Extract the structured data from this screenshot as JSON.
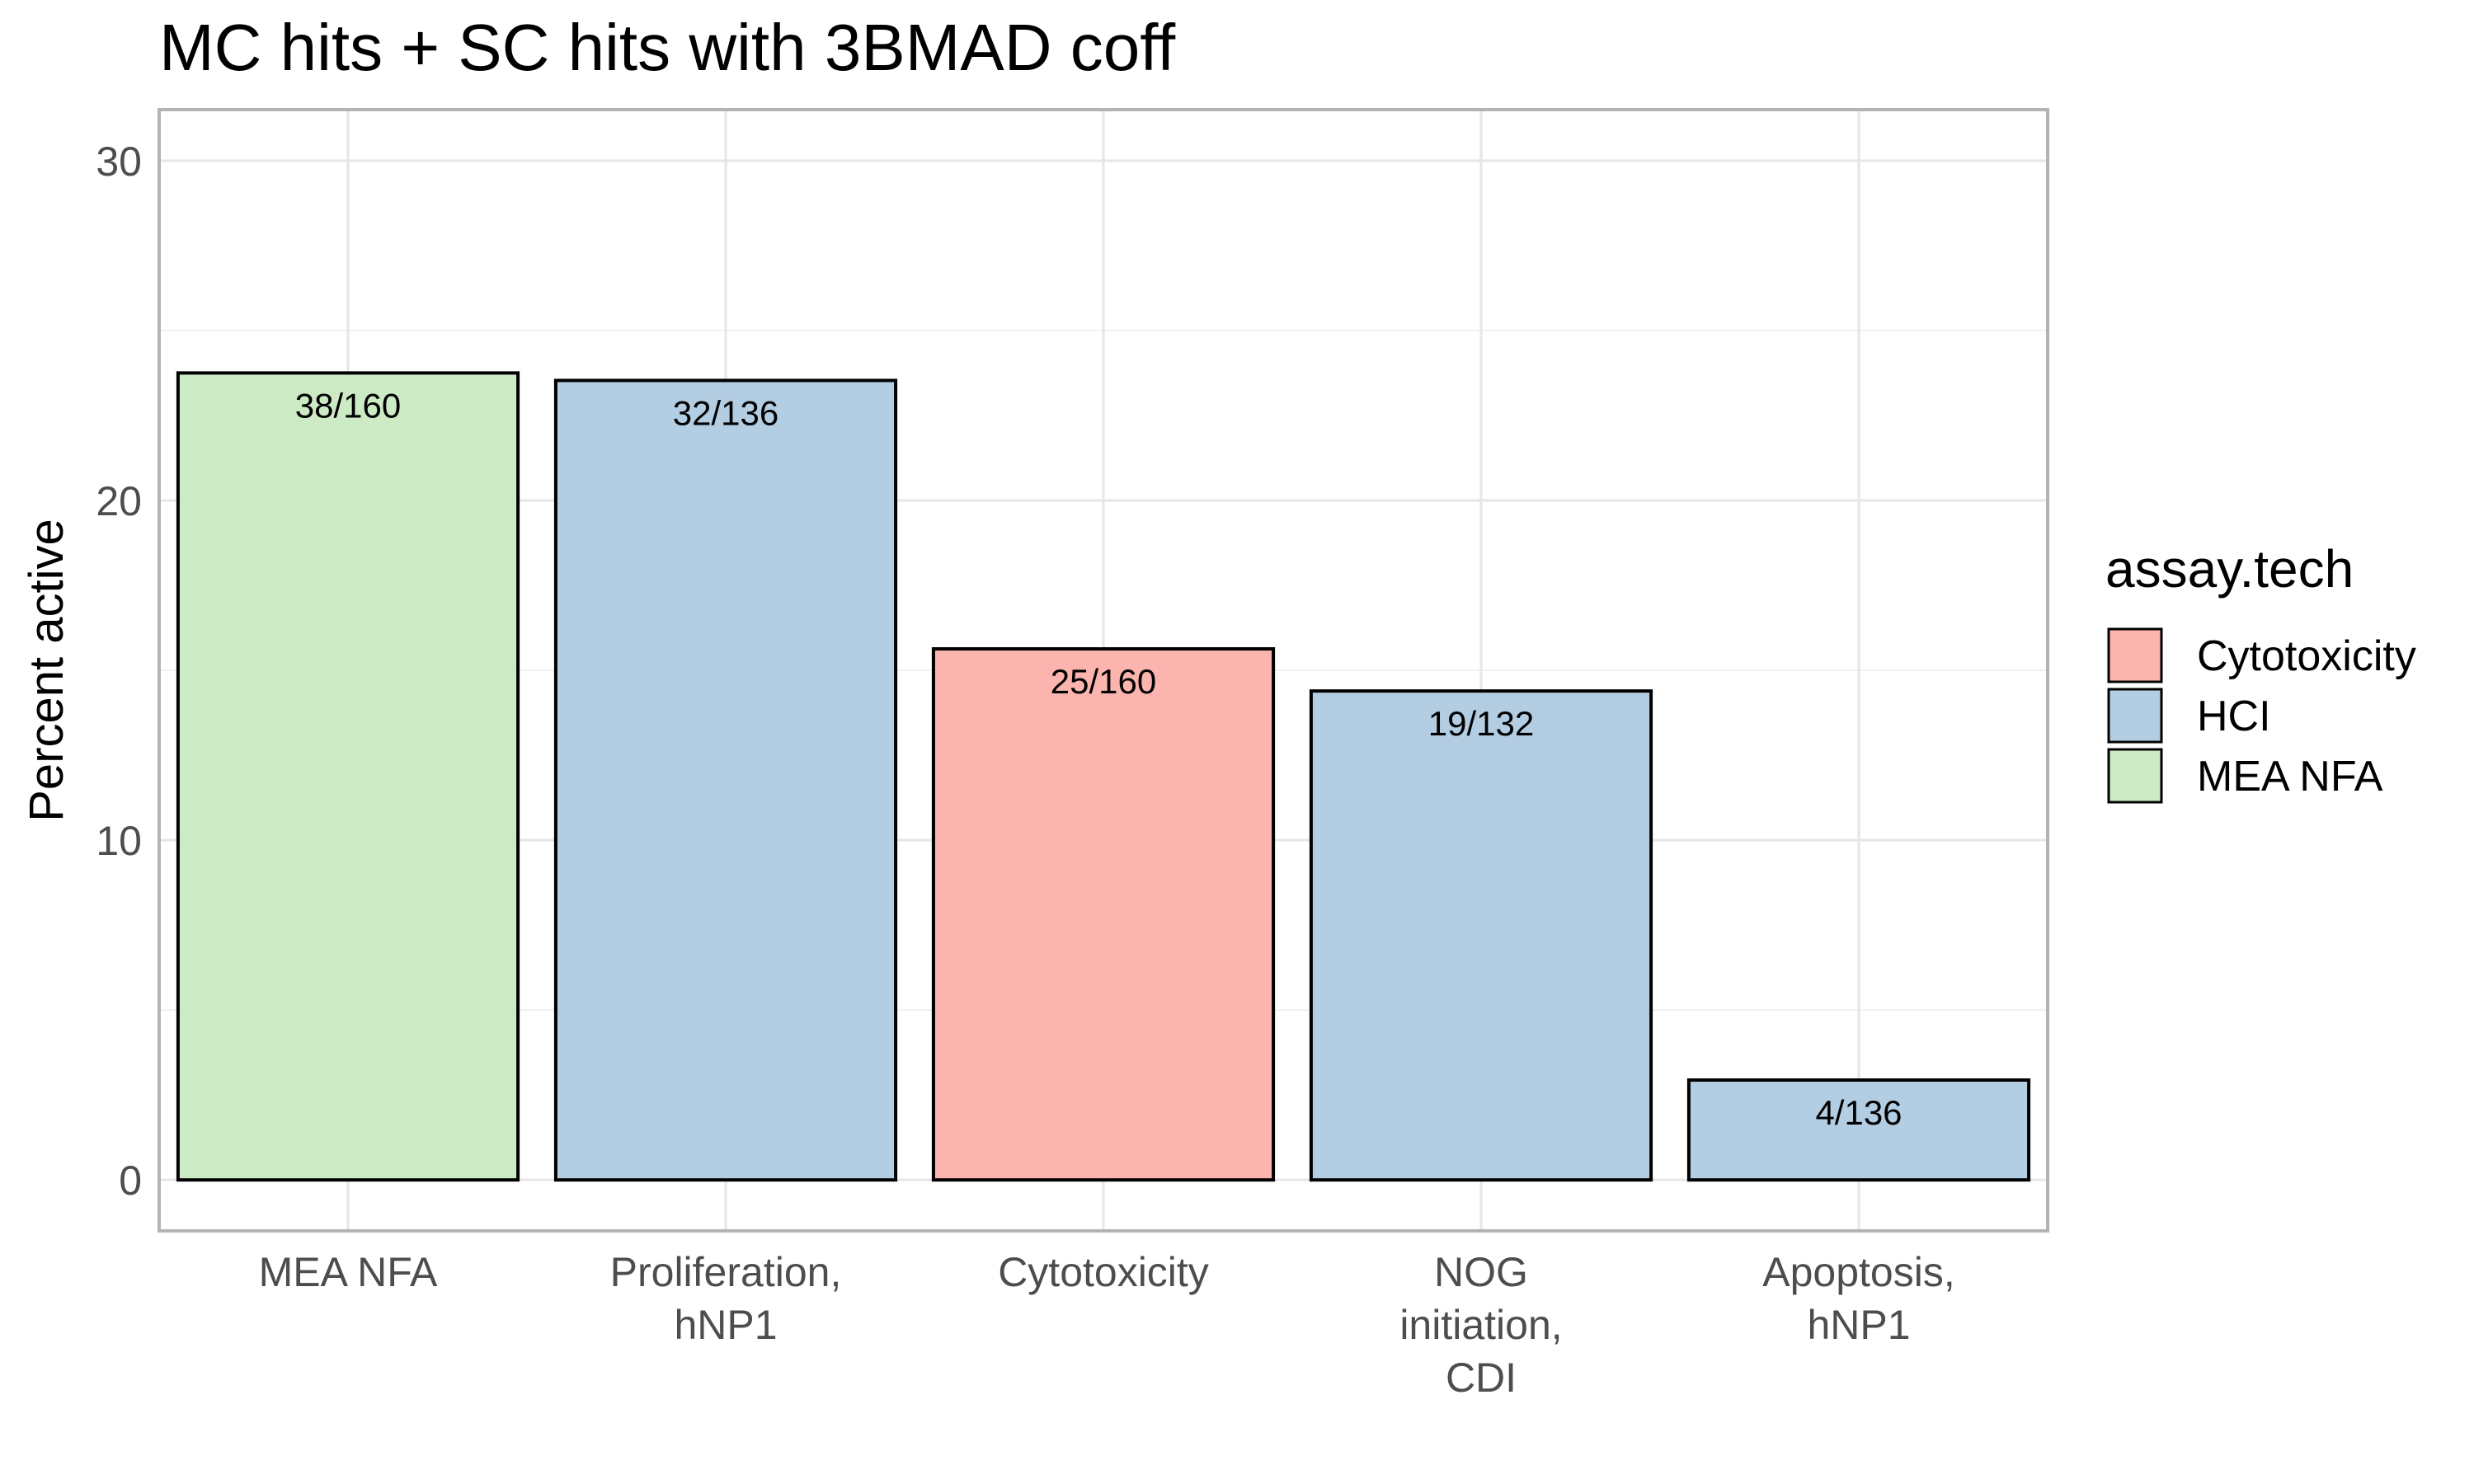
{
  "chart_data": {
    "type": "bar",
    "title": "MC hits + SC hits with 3BMAD coff",
    "xlabel": "",
    "ylabel": "Percent active",
    "ylim": [
      -1.5,
      31.5
    ],
    "y_ticks": [
      "0",
      "10",
      "20",
      "30"
    ],
    "grid": true,
    "legend_position": "right",
    "categories": [
      [
        "MEA NFA"
      ],
      [
        "Proliferation,",
        "hNP1"
      ],
      [
        "Cytotoxicity"
      ],
      [
        "NOG",
        "initiation,",
        "CDI"
      ],
      [
        "Apoptosis,",
        "hNP1"
      ]
    ],
    "values": [
      23.75,
      23.53,
      15.63,
      14.39,
      2.94
    ],
    "labels": [
      "38/160",
      "32/136",
      "25/160",
      "19/132",
      "4/136"
    ],
    "groups": [
      "MEA NFA",
      "HCI",
      "Cytotoxicity",
      "HCI",
      "HCI"
    ],
    "legend": {
      "title": "assay.tech",
      "entries": [
        {
          "name": "Cytotoxicity",
          "color": "#FBB4AE"
        },
        {
          "name": "HCI",
          "color": "#B3CDE3"
        },
        {
          "name": "MEA NFA",
          "color": "#CCEBC5"
        }
      ]
    }
  }
}
